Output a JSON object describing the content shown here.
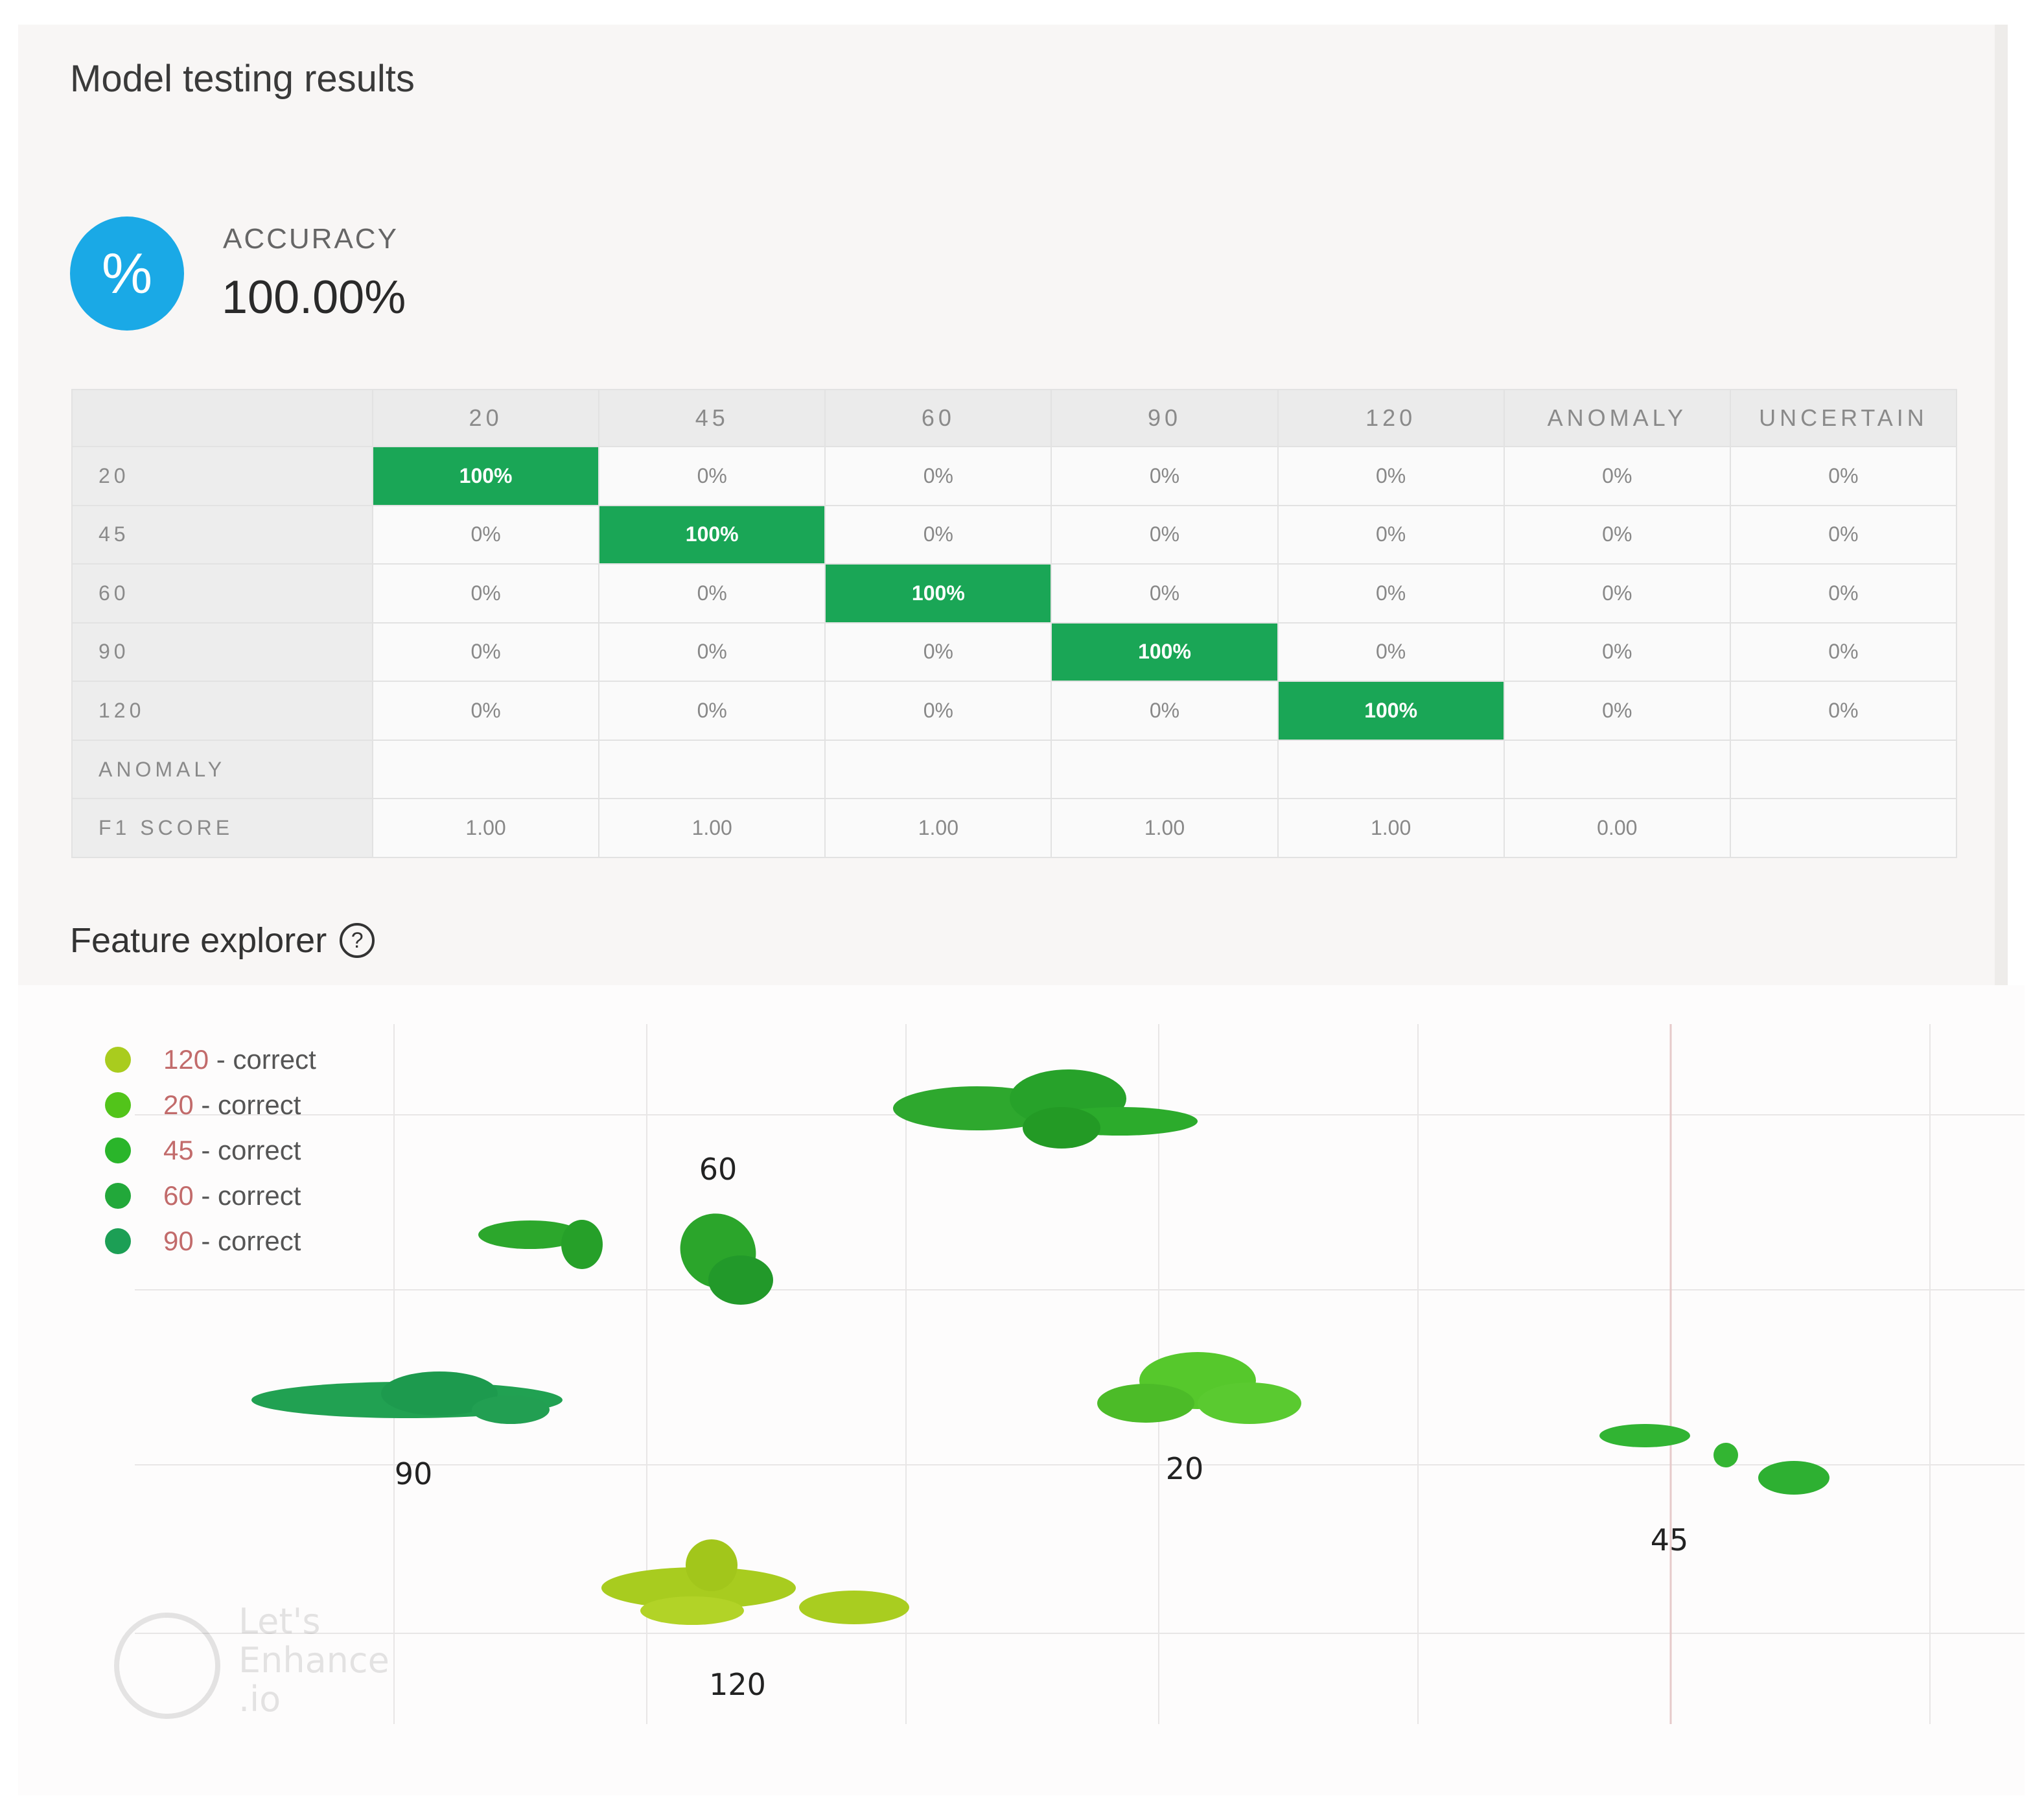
{
  "title": "Model testing results",
  "accuracy": {
    "icon": "percent-icon",
    "icon_glyph": "%",
    "label": "ACCURACY",
    "value": "100.00%",
    "color": "#1aa9e6"
  },
  "confusion_matrix": {
    "columns": [
      "20",
      "45",
      "60",
      "90",
      "120",
      "ANOMALY",
      "UNCERTAIN"
    ],
    "rows": [
      {
        "label": "20",
        "cells": [
          "100%",
          "0%",
          "0%",
          "0%",
          "0%",
          "0%",
          "0%"
        ]
      },
      {
        "label": "45",
        "cells": [
          "0%",
          "100%",
          "0%",
          "0%",
          "0%",
          "0%",
          "0%"
        ]
      },
      {
        "label": "60",
        "cells": [
          "0%",
          "0%",
          "100%",
          "0%",
          "0%",
          "0%",
          "0%"
        ]
      },
      {
        "label": "90",
        "cells": [
          "0%",
          "0%",
          "0%",
          "100%",
          "0%",
          "0%",
          "0%"
        ]
      },
      {
        "label": "120",
        "cells": [
          "0%",
          "0%",
          "0%",
          "0%",
          "100%",
          "0%",
          "0%"
        ]
      },
      {
        "label": "ANOMALY",
        "cells": [
          "",
          "",
          "",
          "",
          "",
          "",
          ""
        ]
      },
      {
        "label": "F1 SCORE",
        "cells": [
          "1.00",
          "1.00",
          "1.00",
          "1.00",
          "1.00",
          "0.00",
          ""
        ]
      }
    ],
    "highlight_color": "#1aa656"
  },
  "feature_explorer": {
    "title": "Feature explorer",
    "help_icon": "help-circle-icon",
    "help_glyph": "?",
    "legend": [
      {
        "code": "120",
        "suffix": " - correct",
        "color": "#a9cc1e"
      },
      {
        "code": "20",
        "suffix": " - correct",
        "color": "#52c41a"
      },
      {
        "code": "45",
        "suffix": " - correct",
        "color": "#2ab52a"
      },
      {
        "code": "60",
        "suffix": " - correct",
        "color": "#22a83a"
      },
      {
        "code": "90",
        "suffix": " - correct",
        "color": "#1c9f55"
      }
    ],
    "cluster_labels": [
      "60",
      "90",
      "20",
      "45",
      "120"
    ]
  },
  "watermark": {
    "line1": "Let's",
    "line2": "Enhance",
    "line3": ".io"
  }
}
